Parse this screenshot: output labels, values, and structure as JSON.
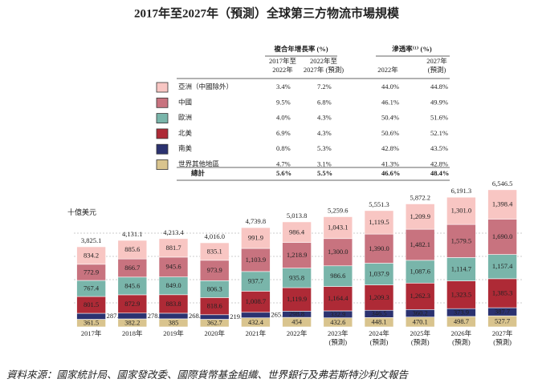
{
  "chart_data": {
    "type": "stacked_bar",
    "title": "2017年至2027年（預測）全球第三方物流市場規模",
    "unit_label": "十億美元",
    "source": "資料來源：國家統計局、國家發改委、國際貨幣基金組織、世界銀行及弗若斯特沙利文報告",
    "categories": [
      [
        "2017年"
      ],
      [
        "2018年"
      ],
      [
        "2019年"
      ],
      [
        "2020年"
      ],
      [
        "2021年"
      ],
      [
        "2022年"
      ],
      [
        "2023年",
        "(預測)"
      ],
      [
        "2024年",
        "(預測)"
      ],
      [
        "2025年",
        "(預測)"
      ],
      [
        "2026年",
        "(預測)"
      ],
      [
        "2027年",
        "(預測)"
      ]
    ],
    "ylim": [
      0,
      7000
    ],
    "series": [
      {
        "name": "世界其他地區",
        "color": "#d9c48e",
        "label_color": "#222",
        "values": [
          361.5,
          382.2,
          385.0,
          362.7,
          432.4,
          454.0,
          432.6,
          448.1,
          470.1,
          498.7,
          527.7
        ]
      },
      {
        "name": "南美",
        "color": "#2b3270",
        "label_color": "#fff",
        "values": [
          287.6,
          278.1,
          268.3,
          219.4,
          265.2,
          298.8,
          332.9,
          346.5,
          360.2,
          373.9,
          387.7
        ]
      },
      {
        "name": "北美",
        "color": "#ae2a36",
        "label_color": "#fff",
        "values": [
          801.5,
          872.9,
          883.8,
          818.6,
          1008.7,
          1119.9,
          1164.4,
          1209.3,
          1262.3,
          1323.5,
          1385.3
        ],
        "value_labels": [
          "801.5",
          "872.9",
          "883.8",
          "818.6",
          "1,008.7",
          "1,119.9",
          "1,164.4",
          "1,209.3",
          "1,262.3",
          "1,323.5",
          "1,385.3"
        ]
      },
      {
        "name": "歐洲",
        "color": "#79b5aa",
        "label_color": "#222",
        "values": [
          767.4,
          845.6,
          849.0,
          806.3,
          937.7,
          935.8,
          986.6,
          1037.9,
          1087.6,
          1114.7,
          1157.4
        ],
        "value_labels": [
          "767.4",
          "845.6",
          "849.0",
          "806.3",
          "937.7",
          "935.8",
          "986.6",
          "1,037.9",
          "1,087.6",
          "1,114.7",
          "1,157.4"
        ]
      },
      {
        "name": "中國",
        "color": "#c8737f",
        "label_color": "#222",
        "values": [
          772.9,
          866.7,
          945.6,
          973.9,
          1103.9,
          1218.9,
          1300.0,
          1390.0,
          1482.1,
          1579.5,
          1690.0
        ],
        "value_labels": [
          "772.9",
          "866.7",
          "945.6",
          "973.9",
          "1,103.9",
          "1,218.9",
          "1,300.0",
          "1,390.0",
          "1,482.1",
          "1,579.5",
          "1,690.0"
        ]
      },
      {
        "name": "亞洲（中國除外）",
        "color": "#f8c6c3",
        "label_color": "#222",
        "values": [
          834.2,
          885.6,
          881.7,
          835.1,
          991.9,
          986.4,
          1043.1,
          1119.5,
          1209.9,
          1301.0,
          1398.4
        ],
        "value_labels": [
          "834.2",
          "885.6",
          "881.7",
          "835.1",
          "991.9",
          "986.4",
          "1,043.1",
          "1,119.5",
          "1,209.9",
          "1,301.0",
          "1,398.4"
        ]
      }
    ],
    "totals": {
      "values": [
        3825.1,
        4131.1,
        4213.4,
        4016.0,
        4739.8,
        5013.8,
        5259.6,
        5551.3,
        5872.2,
        6191.3,
        6546.5
      ],
      "value_labels": [
        "3,825.1",
        "4,131.1",
        "4,213.4",
        "4,016.0",
        "4,739.8",
        "5,013.8",
        "5,259.6",
        "5,551.3",
        "5,872.2",
        "6,191.3",
        "6,546.5"
      ]
    },
    "legend_table": {
      "groups": [
        "複合年增長率 (%)",
        "滲透率⁽¹⁾ (%)"
      ],
      "columns": [
        [
          "2017年至",
          "2022年"
        ],
        [
          "2022年至",
          "2027年 (預測)"
        ],
        [
          "2022年"
        ],
        [
          "2027年",
          "(預測)"
        ]
      ],
      "rows": [
        [
          "4.7%",
          "3.1%",
          "41.3%",
          "42.8%"
        ],
        [
          "0.8%",
          "5.3%",
          "42.8%",
          "43.5%"
        ],
        [
          "6.9%",
          "4.3%",
          "50.6%",
          "52.1%"
        ],
        [
          "4.0%",
          "4.3%",
          "50.4%",
          "51.6%"
        ],
        [
          "9.5%",
          "6.8%",
          "46.1%",
          "49.9%"
        ],
        [
          "3.4%",
          "7.2%",
          "44.0%",
          "44.8%"
        ]
      ],
      "total": {
        "label": "總計",
        "values": [
          "5.6%",
          "5.5%",
          "46.6%",
          "48.4%"
        ]
      }
    }
  }
}
